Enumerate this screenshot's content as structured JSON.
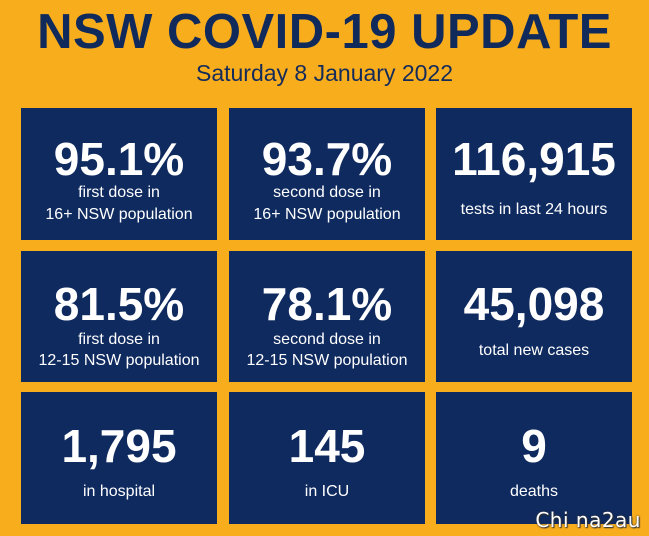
{
  "header": {
    "title": "NSW COVID-19 UPDATE",
    "date": "Saturday 8 January 2022"
  },
  "tiles": [
    {
      "value": "95.1%",
      "label_line1": "first dose in",
      "label_line2": "16+ NSW population"
    },
    {
      "value": "93.7%",
      "label_line1": "second dose in",
      "label_line2": "16+ NSW population"
    },
    {
      "value": "116,915",
      "label_line1": "tests in last 24 hours",
      "label_line2": ""
    },
    {
      "value": "81.5%",
      "label_line1": "first dose in",
      "label_line2": "12-15 NSW population"
    },
    {
      "value": "78.1%",
      "label_line1": "second dose in",
      "label_line2": "12-15 NSW population"
    },
    {
      "value": "45,098",
      "label_line1": "total new cases",
      "label_line2": ""
    },
    {
      "value": "1,795",
      "label_line1": "in hospital",
      "label_line2": ""
    },
    {
      "value": "145",
      "label_line1": "in ICU",
      "label_line2": ""
    },
    {
      "value": "9",
      "label_line1": "deaths",
      "label_line2": ""
    }
  ],
  "watermark": "Chi na2au",
  "colors": {
    "background": "#f8ad1d",
    "tile": "#0f2a5f",
    "title": "#112a5c"
  }
}
